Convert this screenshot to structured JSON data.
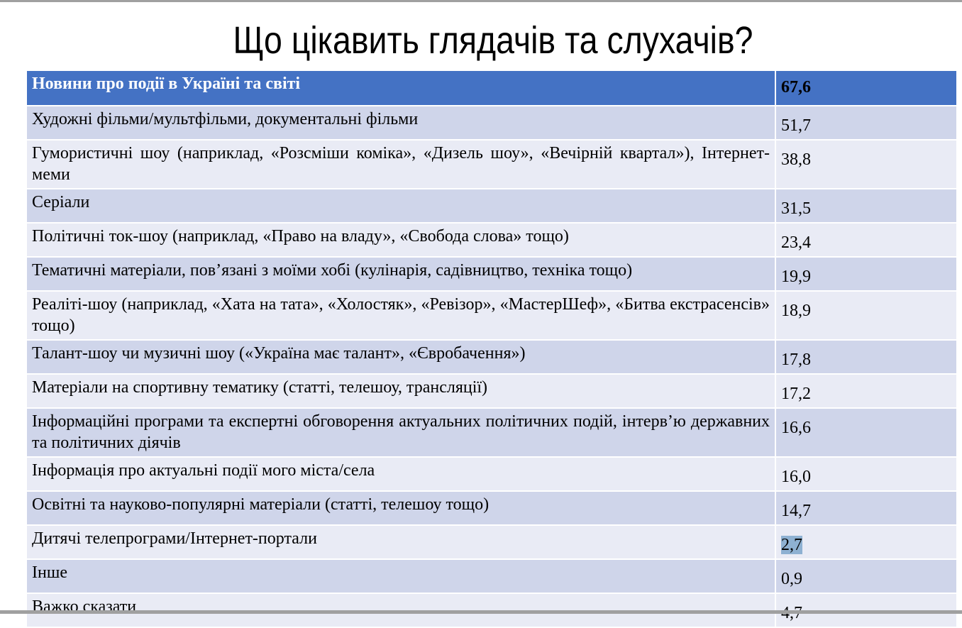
{
  "title": "Що цікавить глядачів та слухачів?",
  "header": {
    "label": "Новини про події в Україні та світі",
    "value": "67,6",
    "color": "#4472c4"
  },
  "rows": [
    {
      "label": "Художні фільми/мультфільми, документальні фільми",
      "value": "51,7"
    },
    {
      "label": "Гумористичні шоу (наприклад, «Розсміши коміка», «Дизель шоу», «Вечірній квартал»), Інтернет-меми",
      "value": "38,8"
    },
    {
      "label": "Серіали",
      "value": "31,5"
    },
    {
      "label": "Політичні ток-шоу (наприклад, «Право на владу», «Свобода слова» тощо)",
      "value": "23,4"
    },
    {
      "label": "Тематичні матеріали, пов’язані з моїми хобі (кулінарія, садівництво, техніка тощо)",
      "value": "19,9"
    },
    {
      "label": "Реаліті-шоу (наприклад, «Хата на тата», «Холостяк», «Ревізор», «МастерШеф», «Битва екстрасенсів» тощо)",
      "value": "18,9"
    },
    {
      "label": "Талант-шоу чи музичні шоу («Україна має талант», «Євробачення»)",
      "value": "17,8"
    },
    {
      "label": "Матеріали на спортивну тематику (статті, телешоу, трансляції)",
      "value": "17,2"
    },
    {
      "label": "Інформаційні програми та експертні обговорення актуальних політичних подій, інтерв’ю державних та політичних діячів",
      "value": "16,6"
    },
    {
      "label": "Інформація про актуальні події мого міста/села",
      "value": "16,0"
    },
    {
      "label": "Освітні та науково-популярні матеріали (статті, телешоу тощо)",
      "value": "14,7"
    },
    {
      "label": "Дитячі телепрограми/Інтернет-портали",
      "value": "2,7",
      "highlighted": true
    },
    {
      "label": "Інше",
      "value": "0,9"
    },
    {
      "label": "Важко сказати",
      "value": "4,7"
    }
  ]
}
